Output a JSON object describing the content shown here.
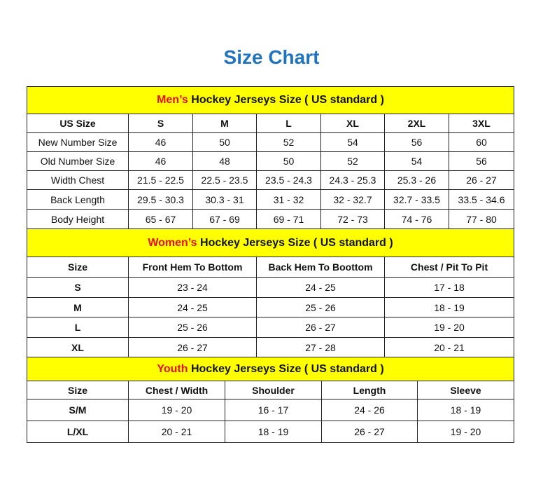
{
  "title": "Size Chart",
  "colors": {
    "title": "#1f73c0",
    "section_bg": "#ffff00",
    "accent": "#e81010"
  },
  "men": {
    "accent": "Men’s",
    "heading": " Hockey Jerseys Size ( US standard )",
    "header": [
      "US Size",
      "S",
      "M",
      "L",
      "XL",
      "2XL",
      "3XL"
    ],
    "rows": [
      [
        "New Number Size",
        "46",
        "50",
        "52",
        "54",
        "56",
        "60"
      ],
      [
        "Old Number Size",
        "46",
        "48",
        "50",
        "52",
        "54",
        "56"
      ],
      [
        "Width Chest",
        "21.5 - 22.5",
        "22.5 - 23.5",
        "23.5 - 24.3",
        "24.3 - 25.3",
        "25.3 - 26",
        "26 - 27"
      ],
      [
        "Back Length",
        "29.5 - 30.3",
        "30.3 - 31",
        "31 - 32",
        "32 - 32.7",
        "32.7 - 33.5",
        "33.5 - 34.6"
      ],
      [
        "Body Height",
        "65 - 67",
        "67 - 69",
        "69 - 71",
        "72 - 73",
        "74 - 76",
        "77 - 80"
      ]
    ]
  },
  "women": {
    "accent": "Women’s",
    "heading": " Hockey Jerseys Size ( US standard )",
    "header": [
      "Size",
      "Front Hem To Bottom",
      "Back Hem To Boottom",
      "Chest / Pit To Pit"
    ],
    "rows": [
      [
        "S",
        "23 - 24",
        "24 - 25",
        "17 - 18"
      ],
      [
        "M",
        "24 - 25",
        "25 - 26",
        "18 - 19"
      ],
      [
        "L",
        "25 - 26",
        "26 - 27",
        "19 - 20"
      ],
      [
        "XL",
        "26 - 27",
        "27 - 28",
        "20 - 21"
      ]
    ]
  },
  "youth": {
    "accent": "Youth",
    "heading": " Hockey Jerseys Size ( US standard )",
    "header": [
      "Size",
      "Chest / Width",
      "Shoulder",
      "Length",
      "Sleeve"
    ],
    "rows": [
      [
        "S/M",
        "19 - 20",
        "16 - 17",
        "24 - 26",
        "18 - 19"
      ],
      [
        "L/XL",
        "20 - 21",
        "18 - 19",
        "26 - 27",
        "19 - 20"
      ]
    ]
  }
}
